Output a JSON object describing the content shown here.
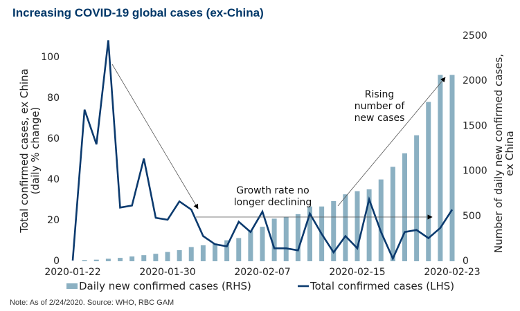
{
  "title": "Increasing COVID-19 global cases (ex-China)",
  "note": "Note: As of 2/24/2020. Source: WHO, RBC GAM",
  "colors": {
    "bar": "#8bb0c2",
    "line": "#0b3a6e",
    "title": "#003768",
    "arrow": "#555555"
  },
  "chart_data": {
    "type": "bar",
    "title": "Increasing COVID-19 global cases (ex-China)",
    "x": [
      "2020-01-22",
      "2020-01-23",
      "2020-01-24",
      "2020-01-25",
      "2020-01-26",
      "2020-01-27",
      "2020-01-28",
      "2020-01-29",
      "2020-01-30",
      "2020-01-31",
      "2020-02-01",
      "2020-02-02",
      "2020-02-03",
      "2020-02-04",
      "2020-02-05",
      "2020-02-06",
      "2020-02-07",
      "2020-02-08",
      "2020-02-09",
      "2020-02-10",
      "2020-02-11",
      "2020-02-12",
      "2020-02-13",
      "2020-02-14",
      "2020-02-15",
      "2020-02-16",
      "2020-02-17",
      "2020-02-18",
      "2020-02-19",
      "2020-02-20",
      "2020-02-21",
      "2020-02-22",
      "2020-02-23"
    ],
    "xticks": [
      "2020-01-22",
      "2020-01-30",
      "2020-02-07",
      "2020-02-15",
      "2020-02-23"
    ],
    "series": [
      {
        "name": "Daily new confirmed cases (RHS)",
        "type": "bar",
        "axis": "right",
        "values": [
          0,
          5,
          10,
          20,
          30,
          45,
          60,
          75,
          95,
          115,
          150,
          170,
          190,
          225,
          250,
          330,
          375,
          465,
          485,
          515,
          600,
          600,
          660,
          735,
          770,
          790,
          900,
          1040,
          1190,
          1390,
          1760,
          2060,
          2060
        ]
      },
      {
        "name": "Total confirmed cases (LHS)",
        "type": "line",
        "axis": "left",
        "values": [
          0,
          74,
          57,
          108,
          26,
          27,
          50,
          21,
          20,
          29,
          25,
          12,
          8,
          7,
          19,
          14,
          24,
          6,
          6,
          5,
          23,
          13,
          4,
          12,
          6,
          30,
          14,
          1,
          14,
          15,
          11,
          16,
          25
        ]
      }
    ],
    "left_axis": {
      "label": "Total confirmed cases, ex China (daily % change)",
      "ylim": [
        0,
        110
      ],
      "ticks": [
        0,
        20,
        40,
        60,
        80,
        100
      ]
    },
    "right_axis": {
      "label": "Number of daily new confirmed cases, ex China",
      "ylim": [
        0,
        2500
      ],
      "ticks": [
        0,
        500,
        1000,
        1500,
        2000,
        2500
      ]
    },
    "annotations": [
      {
        "text": [
          "Growth rate no",
          "longer declining"
        ]
      },
      {
        "text": [
          "Rising",
          "number of",
          "new cases"
        ]
      }
    ],
    "legend": {
      "position": "bottom",
      "entries": [
        "Daily new confirmed cases (RHS)",
        "Total confirmed cases (LHS)"
      ]
    },
    "grid": false
  }
}
